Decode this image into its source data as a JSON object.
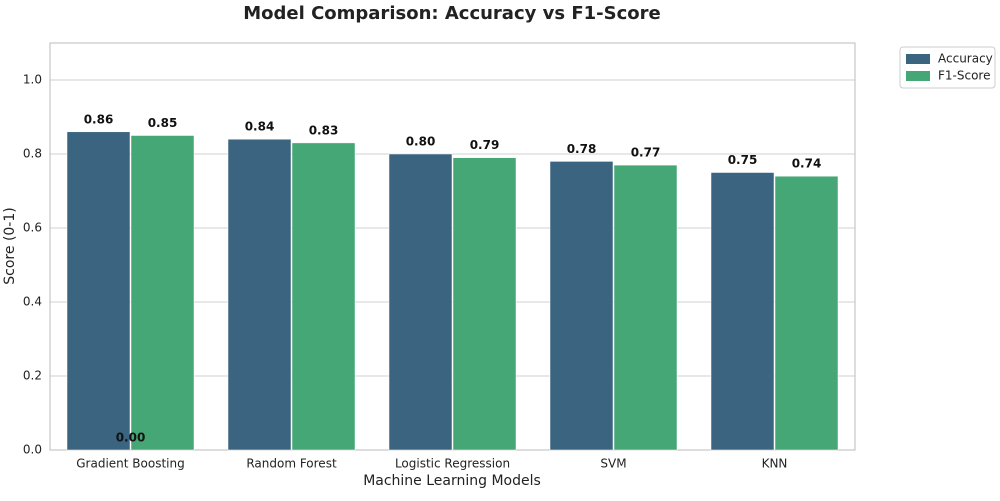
{
  "chart_data": {
    "type": "bar",
    "title": "Model Comparison: Accuracy vs F1-Score",
    "x_label": "Machine Learning Models",
    "y_label": "Score (0-1)",
    "categories": [
      "Gradient Boosting",
      "Random Forest",
      "Logistic Regression",
      "SVM",
      "KNN"
    ],
    "series": [
      {
        "name": "Accuracy",
        "color": "#3b6481",
        "values": [
          0.86,
          0.84,
          0.8,
          0.78,
          0.75
        ],
        "value_labels": [
          "0.86",
          "0.84",
          "0.80",
          "0.78",
          "0.75"
        ]
      },
      {
        "name": "F1-Score",
        "color": "#45a676",
        "values": [
          0.85,
          0.83,
          0.79,
          0.77,
          0.74
        ],
        "value_labels": [
          "0.85",
          "0.83",
          "0.79",
          "0.77",
          "0.74"
        ]
      }
    ],
    "annotations": [
      {
        "text": "0.00",
        "category": "Gradient Boosting",
        "value": 0
      }
    ],
    "ylim": [
      0,
      1.1
    ],
    "yticks": [
      {
        "value": 0,
        "label": "0.0"
      },
      0.2,
      0.4,
      0.6,
      0.8,
      {
        "value": 1,
        "label": "1.0"
      }
    ],
    "grid": true,
    "legend": "outside-upper-right"
  }
}
